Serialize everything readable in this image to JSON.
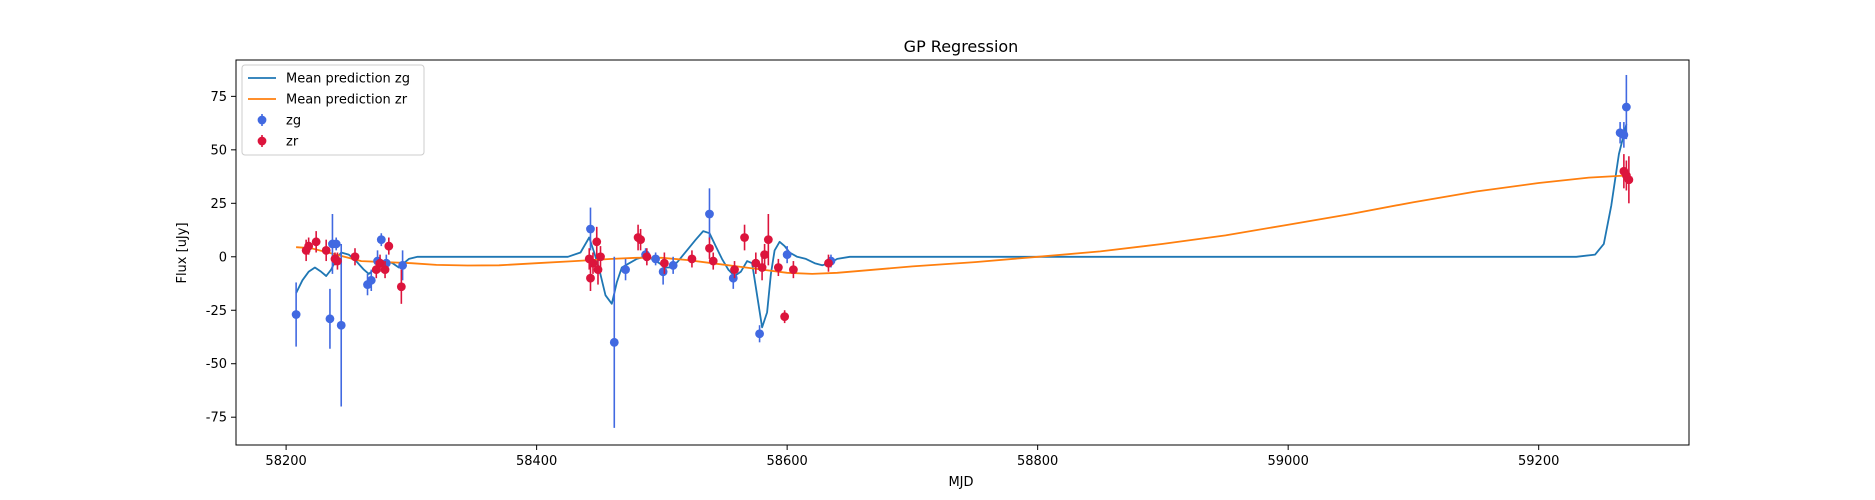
{
  "chart_data": {
    "type": "scatter",
    "title": "GP Regression",
    "xlabel": "MJD",
    "ylabel": "Flux [uJy]",
    "xlim": [
      58160,
      59320
    ],
    "ylim": [
      -88,
      92
    ],
    "x_ticks": [
      58200,
      58400,
      58600,
      58800,
      59000,
      59200
    ],
    "y_ticks": [
      -75,
      -50,
      -25,
      0,
      25,
      50,
      75
    ],
    "grid": false,
    "legend_position": "top-left",
    "lines": [
      {
        "name": "Mean prediction zg",
        "color": "#1f77b4",
        "points": [
          [
            58208,
            -17
          ],
          [
            58213,
            -11
          ],
          [
            58218,
            -7
          ],
          [
            58223,
            -5
          ],
          [
            58228,
            -7
          ],
          [
            58232,
            -9
          ],
          [
            58236,
            -6
          ],
          [
            58240,
            -1
          ],
          [
            58244,
            2
          ],
          [
            58250,
            1
          ],
          [
            58256,
            -2
          ],
          [
            58262,
            -6
          ],
          [
            58266,
            -8
          ],
          [
            58270,
            -6
          ],
          [
            58275,
            -3
          ],
          [
            58280,
            -2
          ],
          [
            58285,
            -3
          ],
          [
            58290,
            -5
          ],
          [
            58294,
            -3
          ],
          [
            58298,
            -1
          ],
          [
            58305,
            0
          ],
          [
            58320,
            0
          ],
          [
            58380,
            0
          ],
          [
            58425,
            0
          ],
          [
            58435,
            2
          ],
          [
            58442,
            9
          ],
          [
            58446,
            2
          ],
          [
            58450,
            -6
          ],
          [
            58455,
            -18
          ],
          [
            58460,
            -22
          ],
          [
            58464,
            -12
          ],
          [
            58468,
            -5
          ],
          [
            58474,
            -3
          ],
          [
            58480,
            -1
          ],
          [
            58486,
            0
          ],
          [
            58492,
            -1
          ],
          [
            58498,
            -3
          ],
          [
            58503,
            -5
          ],
          [
            58508,
            -5
          ],
          [
            58513,
            -2
          ],
          [
            58520,
            3
          ],
          [
            58527,
            8
          ],
          [
            58533,
            12
          ],
          [
            58538,
            11
          ],
          [
            58543,
            5
          ],
          [
            58548,
            -1
          ],
          [
            58553,
            -6
          ],
          [
            58558,
            -9
          ],
          [
            58563,
            -7
          ],
          [
            58568,
            -2
          ],
          [
            58572,
            -3
          ],
          [
            58576,
            -18
          ],
          [
            58580,
            -33
          ],
          [
            58584,
            -26
          ],
          [
            58587,
            -8
          ],
          [
            58590,
            3
          ],
          [
            58594,
            7
          ],
          [
            58598,
            5
          ],
          [
            58602,
            2
          ],
          [
            58608,
            0
          ],
          [
            58615,
            -1
          ],
          [
            58622,
            -3
          ],
          [
            58628,
            -4
          ],
          [
            58634,
            -3
          ],
          [
            58640,
            -1
          ],
          [
            58650,
            0
          ],
          [
            58800,
            0
          ],
          [
            59000,
            0
          ],
          [
            59150,
            0
          ],
          [
            59230,
            0
          ],
          [
            59245,
            1
          ],
          [
            59252,
            6
          ],
          [
            59258,
            24
          ],
          [
            59264,
            48
          ],
          [
            59270,
            62
          ]
        ]
      },
      {
        "name": "Mean prediction zr",
        "color": "#ff7f0e",
        "points": [
          [
            58208,
            4.5
          ],
          [
            58220,
            4
          ],
          [
            58240,
            1
          ],
          [
            58260,
            -2
          ],
          [
            58280,
            -2.5
          ],
          [
            58300,
            -3
          ],
          [
            58320,
            -3.8
          ],
          [
            58345,
            -4.1
          ],
          [
            58370,
            -4
          ],
          [
            58400,
            -3
          ],
          [
            58430,
            -2
          ],
          [
            58460,
            -1
          ],
          [
            58480,
            -0.5
          ],
          [
            58500,
            -0.5
          ],
          [
            58520,
            -1.5
          ],
          [
            58540,
            -3
          ],
          [
            58560,
            -4.5
          ],
          [
            58580,
            -6
          ],
          [
            58600,
            -7.5
          ],
          [
            58620,
            -8
          ],
          [
            58640,
            -7.5
          ],
          [
            58660,
            -6.5
          ],
          [
            58700,
            -4.5
          ],
          [
            58750,
            -2.5
          ],
          [
            58800,
            0
          ],
          [
            58850,
            2.5
          ],
          [
            58900,
            6
          ],
          [
            58950,
            10
          ],
          [
            59000,
            15
          ],
          [
            59050,
            20
          ],
          [
            59100,
            25.5
          ],
          [
            59150,
            30.5
          ],
          [
            59200,
            34.5
          ],
          [
            59240,
            37
          ],
          [
            59270,
            38
          ]
        ]
      }
    ],
    "series": [
      {
        "name": "zg",
        "color": "#4169e1",
        "points": [
          {
            "x": 58208,
            "y": -27,
            "err": 15
          },
          {
            "x": 58235,
            "y": -29,
            "err": 14
          },
          {
            "x": 58237,
            "y": 6,
            "err": 14
          },
          {
            "x": 58240,
            "y": 6,
            "err": 3
          },
          {
            "x": 58244,
            "y": -32,
            "err": 38
          },
          {
            "x": 58265,
            "y": -13,
            "err": 5
          },
          {
            "x": 58268,
            "y": -11,
            "err": 5
          },
          {
            "x": 58273,
            "y": -2,
            "err": 5
          },
          {
            "x": 58276,
            "y": 8,
            "err": 3
          },
          {
            "x": 58280,
            "y": -3,
            "err": 4
          },
          {
            "x": 58293,
            "y": -4,
            "err": 7
          },
          {
            "x": 58443,
            "y": 13,
            "err": 10
          },
          {
            "x": 58462,
            "y": -40,
            "err": 40
          },
          {
            "x": 58471,
            "y": -6,
            "err": 5
          },
          {
            "x": 58487,
            "y": 1,
            "err": 3
          },
          {
            "x": 58495,
            "y": -1,
            "err": 3
          },
          {
            "x": 58501,
            "y": -7,
            "err": 6
          },
          {
            "x": 58509,
            "y": -4,
            "err": 4
          },
          {
            "x": 58538,
            "y": 20,
            "err": 12
          },
          {
            "x": 58557,
            "y": -10,
            "err": 5
          },
          {
            "x": 58578,
            "y": -36,
            "err": 4
          },
          {
            "x": 58600,
            "y": 1,
            "err": 4
          },
          {
            "x": 58635,
            "y": -2,
            "err": 3
          },
          {
            "x": 59265,
            "y": 58,
            "err": 5
          },
          {
            "x": 59270,
            "y": 70,
            "err": 15
          },
          {
            "x": 59268,
            "y": 57,
            "err": 6
          }
        ]
      },
      {
        "name": "zr",
        "color": "#dc143c",
        "points": [
          {
            "x": 58216,
            "y": 3,
            "err": 5
          },
          {
            "x": 58218,
            "y": 5,
            "err": 4
          },
          {
            "x": 58224,
            "y": 7,
            "err": 5
          },
          {
            "x": 58232,
            "y": 3,
            "err": 5
          },
          {
            "x": 58239,
            "y": -1,
            "err": 3
          },
          {
            "x": 58241,
            "y": -2,
            "err": 4
          },
          {
            "x": 58255,
            "y": 0,
            "err": 4
          },
          {
            "x": 58272,
            "y": -6,
            "err": 4
          },
          {
            "x": 58275,
            "y": -3,
            "err": 4
          },
          {
            "x": 58279,
            "y": -6,
            "err": 4
          },
          {
            "x": 58282,
            "y": 5,
            "err": 4
          },
          {
            "x": 58292,
            "y": -14,
            "err": 8
          },
          {
            "x": 58442,
            "y": -1,
            "err": 5
          },
          {
            "x": 58443,
            "y": -10,
            "err": 6
          },
          {
            "x": 58445,
            "y": -3,
            "err": 5
          },
          {
            "x": 58448,
            "y": 7,
            "err": 7
          },
          {
            "x": 58449,
            "y": -6,
            "err": 7
          },
          {
            "x": 58451,
            "y": 0,
            "err": 5
          },
          {
            "x": 58481,
            "y": 9,
            "err": 6
          },
          {
            "x": 58483,
            "y": 8,
            "err": 5
          },
          {
            "x": 58488,
            "y": 0,
            "err": 4
          },
          {
            "x": 58502,
            "y": -3,
            "err": 5
          },
          {
            "x": 58524,
            "y": -1,
            "err": 4
          },
          {
            "x": 58538,
            "y": 4,
            "err": 5
          },
          {
            "x": 58541,
            "y": -2,
            "err": 4
          },
          {
            "x": 58558,
            "y": -6,
            "err": 4
          },
          {
            "x": 58566,
            "y": 9,
            "err": 6
          },
          {
            "x": 58575,
            "y": -3,
            "err": 5
          },
          {
            "x": 58580,
            "y": -5,
            "err": 6
          },
          {
            "x": 58582,
            "y": 1,
            "err": 5
          },
          {
            "x": 58585,
            "y": 8,
            "err": 12
          },
          {
            "x": 58593,
            "y": -5,
            "err": 4
          },
          {
            "x": 58598,
            "y": -28,
            "err": 3
          },
          {
            "x": 58605,
            "y": -6,
            "err": 4
          },
          {
            "x": 58633,
            "y": -3,
            "err": 4
          },
          {
            "x": 59268,
            "y": 40,
            "err": 8
          },
          {
            "x": 59270,
            "y": 38,
            "err": 7
          },
          {
            "x": 59272,
            "y": 36,
            "err": 11
          }
        ]
      }
    ]
  }
}
